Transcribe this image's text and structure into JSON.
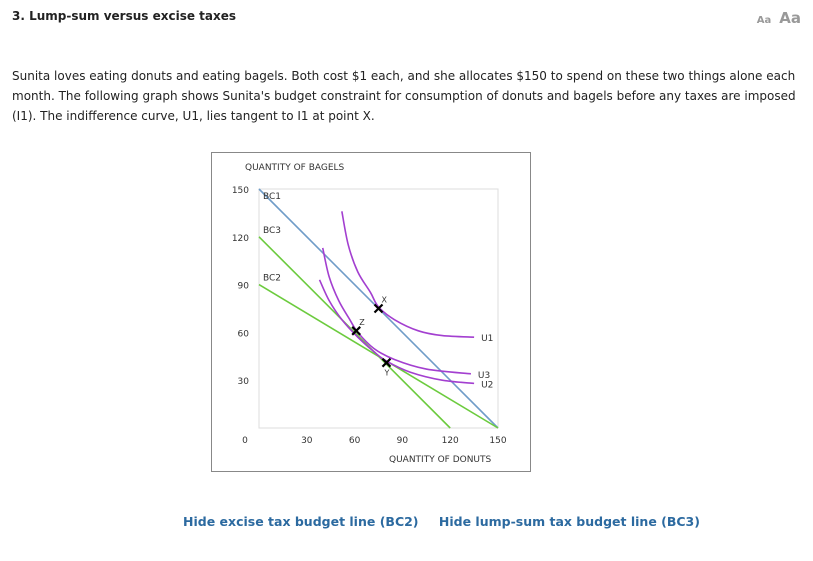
{
  "title": "3. Lump-sum versus excise taxes",
  "font_size_controls": {
    "small": "Aa",
    "large": "Aa"
  },
  "intro": "Sunita loves eating donuts and eating bagels. Both cost $1 each, and she allocates $150 to spend on these two things alone each month. The following graph shows Sunita's budget constraint for consumption of donuts and bagels before any taxes are imposed (I1). The indifference curve, U1, lies tangent to I1 at point X.",
  "links": {
    "hide_bc2": "Hide excise tax budget line (BC2)",
    "hide_bc3": "Hide lump-sum tax budget line (BC3)"
  },
  "chart_data": {
    "type": "line",
    "xlabel": "QUANTITY OF DONUTS",
    "ylabel": "QUANTITY OF BAGELS",
    "xlim": [
      0,
      150
    ],
    "ylim": [
      0,
      150
    ],
    "xticks": [
      "0",
      "30",
      "60",
      "90",
      "120",
      "150"
    ],
    "yticks": [
      "30",
      "60",
      "90",
      "120",
      "150"
    ],
    "grid": false,
    "series": [
      {
        "name": "BC1",
        "color": "#6f9cc8",
        "points": [
          [
            0,
            150
          ],
          [
            150,
            0
          ]
        ]
      },
      {
        "name": "BC3",
        "color": "#6ccb3e",
        "points": [
          [
            0,
            120
          ],
          [
            120,
            0
          ]
        ]
      },
      {
        "name": "BC2",
        "color": "#6ccb3e",
        "points": [
          [
            0,
            90
          ],
          [
            150,
            0
          ]
        ]
      },
      {
        "name": "U1",
        "color": "#a33fd0",
        "points": [
          [
            52,
            136
          ],
          [
            56,
            115
          ],
          [
            62,
            98
          ],
          [
            70,
            85
          ],
          [
            75,
            76
          ],
          [
            85,
            68
          ],
          [
            100,
            61
          ],
          [
            115,
            58
          ],
          [
            135,
            57
          ]
        ]
      },
      {
        "name": "U3",
        "color": "#a33fd0",
        "points": [
          [
            40,
            113
          ],
          [
            44,
            95
          ],
          [
            50,
            80
          ],
          [
            57,
            68
          ],
          [
            62,
            60
          ],
          [
            72,
            50
          ],
          [
            85,
            43
          ],
          [
            105,
            37
          ],
          [
            133,
            34
          ]
        ]
      },
      {
        "name": "U2",
        "color": "#a33fd0",
        "points": [
          [
            38,
            93
          ],
          [
            44,
            80
          ],
          [
            52,
            68
          ],
          [
            62,
            57
          ],
          [
            72,
            48
          ],
          [
            80,
            42
          ],
          [
            95,
            35
          ],
          [
            115,
            30
          ],
          [
            135,
            28
          ]
        ]
      }
    ],
    "markers": [
      {
        "label": "X",
        "x": 75,
        "y": 75
      },
      {
        "label": "Z",
        "x": 61,
        "y": 61
      },
      {
        "label": "Y",
        "x": 80,
        "y": 41
      }
    ]
  }
}
